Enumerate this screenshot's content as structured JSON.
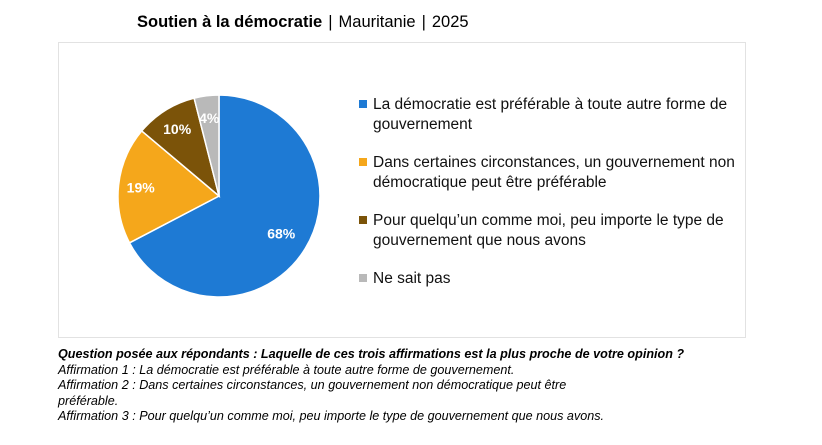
{
  "header": {
    "title": "Soutien à la démocratie",
    "separator": "|",
    "country": "Mauritanie",
    "year": "2025"
  },
  "chart_data": {
    "type": "pie",
    "title": "Soutien à la démocratie | Mauritanie | 2025",
    "slices": [
      {
        "label": "La démocratie est préférable à toute autre forme de gouvernement",
        "value": 68,
        "display": "68%",
        "color": "#1e7ad4"
      },
      {
        "label": "Dans certaines circonstances, un gouvernement non démocratique peut être préférable",
        "value": 19,
        "display": "19%",
        "color": "#f5a71b"
      },
      {
        "label": "Pour quelqu’un comme moi, peu importe le type de gouvernement que nous avons",
        "value": 10,
        "display": "10%",
        "color": "#7b5309"
      },
      {
        "label": "Ne sait pas",
        "value": 4,
        "display": "4%",
        "color": "#b9b9b9"
      }
    ],
    "legend_position": "right"
  },
  "footnote": {
    "question": "Question posée aux répondants : Laquelle de ces trois affirmations est la plus proche de votre opinion ?",
    "lines": [
      "Affirmation 1 : La démocratie est préférable à toute autre forme de gouvernement.",
      "Affirmation 2 : Dans certaines circonstances, un gouvernement non démocratique peut être",
      "préférable.",
      "Affirmation 3 : Pour quelqu’un comme moi, peu importe le type de gouvernement que nous avons."
    ]
  }
}
